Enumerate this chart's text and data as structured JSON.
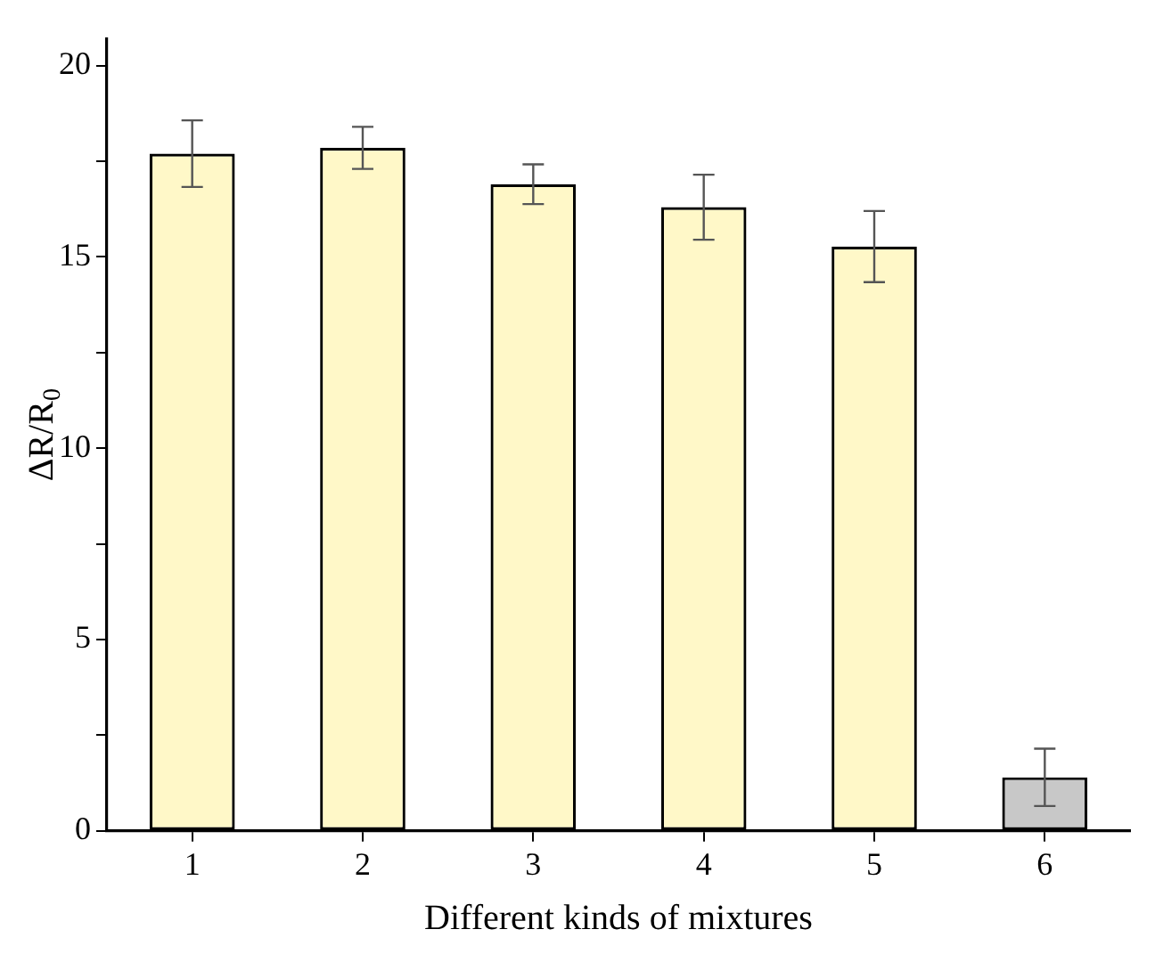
{
  "chart_data": {
    "type": "bar",
    "xlabel": "Different kinds of mixtures",
    "ylabel": "ΔR/R$_{0}$",
    "categories": [
      "1",
      "2",
      "3",
      "4",
      "5",
      "6"
    ],
    "values": [
      17.7,
      17.85,
      16.9,
      16.3,
      15.27,
      1.4
    ],
    "errors": [
      0.87,
      0.55,
      0.52,
      0.85,
      0.93,
      0.75
    ],
    "colors": [
      "#fff8c8",
      "#fff8c8",
      "#fff8c8",
      "#fff8c8",
      "#fff8c8",
      "#c8c8c8"
    ],
    "ylim": [
      0,
      20.7
    ],
    "yticks": [
      0,
      {
        "value": 2.5,
        "label": null
      },
      5,
      {
        "value": 7.5,
        "label": null
      },
      10,
      {
        "value": 12.5,
        "label": null
      },
      15,
      {
        "value": 17.5,
        "label": null
      },
      20
    ],
    "grid": false,
    "legend": false
  }
}
